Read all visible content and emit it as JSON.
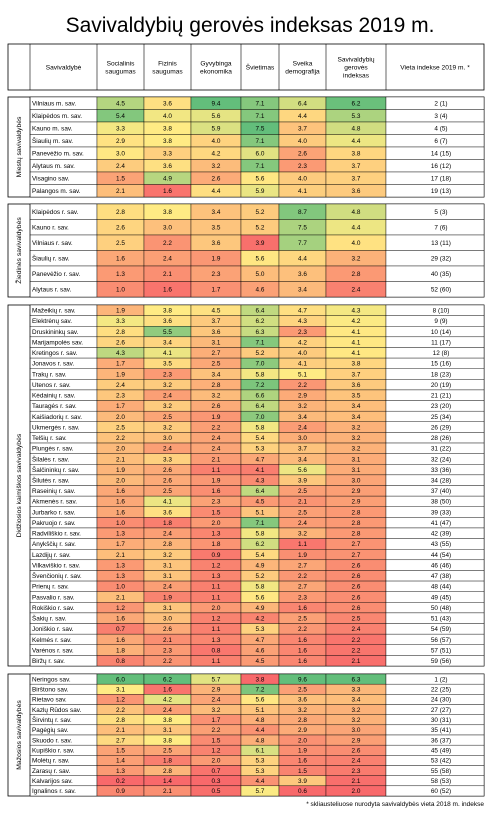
{
  "chart_data": {
    "type": "table",
    "title": "Savivaldybių gerovės indeksas 2019 m.",
    "footnote": "* skliausteliuose nurodyta savivaldybės vieta 2018 m. indekse",
    "columns": [
      "Savivaldybė",
      "Socialinis saugumas",
      "Fizinis saugumas",
      "Gyvybinga ekonomika",
      "Švietimas",
      "Sveika demografija",
      "Savivaldybių gerovės indeksas",
      "Vieta indekse 2019 m. *"
    ],
    "groups": [
      {
        "name": "Miestų savivaldybės",
        "rows": [
          {
            "name": "Vilniaus m. sav.",
            "values": [
              4.5,
              3.6,
              9.4,
              7.1,
              6.4,
              6.2
            ],
            "rank": "2 (1)"
          },
          {
            "name": "Klaipėdos m. sav.",
            "values": [
              5.4,
              4.0,
              5.6,
              7.1,
              4.4,
              5.3
            ],
            "rank": "3 (4)"
          },
          {
            "name": "Kauno m. sav.",
            "values": [
              3.3,
              3.8,
              5.9,
              7.5,
              3.7,
              4.8
            ],
            "rank": "4 (5)"
          },
          {
            "name": "Šiaulių m. sav.",
            "values": [
              2.9,
              3.8,
              4.0,
              7.1,
              4.0,
              4.4
            ],
            "rank": "6 (7)"
          },
          {
            "name": "Panevėžio m. sav.",
            "values": [
              3.0,
              3.3,
              4.2,
              6.0,
              2.6,
              3.8
            ],
            "rank": "14 (15)"
          },
          {
            "name": "Alytaus m. sav.",
            "values": [
              2.4,
              3.6,
              3.2,
              7.1,
              2.3,
              3.7
            ],
            "rank": "16 (12)"
          },
          {
            "name": "Visagino sav.",
            "values": [
              1.5,
              4.9,
              2.6,
              5.6,
              4.0,
              3.7
            ],
            "rank": "17 (18)"
          },
          {
            "name": "Palangos m. sav.",
            "values": [
              2.1,
              1.6,
              4.4,
              5.9,
              4.1,
              3.6
            ],
            "rank": "19 (13)"
          }
        ]
      },
      {
        "name": "Žiedinės savivaldybės",
        "rows": [
          {
            "name": "Klaipėdos r. sav.",
            "values": [
              2.8,
              3.8,
              3.4,
              5.2,
              8.7,
              4.8
            ],
            "rank": "5 (3)"
          },
          {
            "name": "Kauno r. sav.",
            "values": [
              2.6,
              3.0,
              3.5,
              5.2,
              7.5,
              4.4
            ],
            "rank": "7 (6)"
          },
          {
            "name": "Vilniaus r. sav.",
            "values": [
              2.5,
              2.2,
              3.6,
              3.9,
              7.7,
              4.0
            ],
            "rank": "13 (11)"
          },
          {
            "name": "Šiaulių r. sav.",
            "values": [
              1.6,
              2.4,
              1.9,
              5.6,
              4.4,
              3.2
            ],
            "rank": "29 (32)"
          },
          {
            "name": "Panevėžio r. sav.",
            "values": [
              1.3,
              2.1,
              2.3,
              5.0,
              3.6,
              2.8
            ],
            "rank": "40 (35)"
          },
          {
            "name": "Alytaus r. sav.",
            "values": [
              1.0,
              1.6,
              1.7,
              4.6,
              3.4,
              2.4
            ],
            "rank": "52 (60)"
          }
        ]
      },
      {
        "name": "Didžiosios kaimiškos savivaldybės",
        "rows": [
          {
            "name": "Mažeikių r. sav.",
            "values": [
              1.9,
              3.8,
              4.5,
              6.4,
              4.7,
              4.3
            ],
            "rank": "8 (10)"
          },
          {
            "name": "Elektrėnų sav.",
            "values": [
              3.3,
              3.6,
              3.7,
              6.2,
              4.3,
              4.2
            ],
            "rank": "9 (9)"
          },
          {
            "name": "Druskininkų sav.",
            "values": [
              2.8,
              5.5,
              3.6,
              6.3,
              2.3,
              4.1
            ],
            "rank": "10 (14)"
          },
          {
            "name": "Marijampolės sav.",
            "values": [
              2.6,
              3.4,
              3.1,
              7.1,
              4.2,
              4.1
            ],
            "rank": "11 (17)"
          },
          {
            "name": "Kretingos r. sav.",
            "values": [
              4.3,
              4.1,
              2.7,
              5.2,
              4.0,
              4.1
            ],
            "rank": "12 (8)"
          },
          {
            "name": "Jonavos r. sav.",
            "values": [
              1.7,
              3.5,
              2.5,
              7.0,
              4.1,
              3.8
            ],
            "rank": "15 (16)"
          },
          {
            "name": "Trakų r. sav.",
            "values": [
              1.9,
              2.3,
              3.4,
              5.8,
              5.1,
              3.7
            ],
            "rank": "18 (23)"
          },
          {
            "name": "Utenos r. sav.",
            "values": [
              2.4,
              3.2,
              2.8,
              7.2,
              2.2,
              3.6
            ],
            "rank": "20 (19)"
          },
          {
            "name": "Kėdainių r. sav.",
            "values": [
              2.3,
              2.4,
              3.2,
              6.6,
              2.9,
              3.5
            ],
            "rank": "21 (21)"
          },
          {
            "name": "Tauragės r. sav.",
            "values": [
              1.7,
              3.2,
              2.6,
              6.4,
              3.2,
              3.4
            ],
            "rank": "23 (20)"
          },
          {
            "name": "Kaišiadorių r. sav.",
            "values": [
              2.0,
              2.5,
              1.9,
              7.0,
              3.4,
              3.4
            ],
            "rank": "25 (34)"
          },
          {
            "name": "Ukmergės r. sav.",
            "values": [
              2.5,
              3.2,
              2.2,
              5.8,
              2.4,
              3.2
            ],
            "rank": "26 (29)"
          },
          {
            "name": "Telšių r. sav.",
            "values": [
              2.2,
              3.0,
              2.4,
              5.4,
              3.0,
              3.2
            ],
            "rank": "28 (26)"
          },
          {
            "name": "Plungės r. sav.",
            "values": [
              2.0,
              2.4,
              2.4,
              5.3,
              3.7,
              3.2
            ],
            "rank": "31 (22)"
          },
          {
            "name": "Šilalės r. sav.",
            "values": [
              2.1,
              3.3,
              2.1,
              4.7,
              3.4,
              3.1
            ],
            "rank": "32 (24)"
          },
          {
            "name": "Šalčininkų r. sav.",
            "values": [
              1.9,
              2.6,
              1.1,
              4.1,
              5.6,
              3.1
            ],
            "rank": "33 (36)"
          },
          {
            "name": "Šilutės r. sav.",
            "values": [
              2.0,
              2.6,
              1.9,
              4.3,
              3.9,
              3.0
            ],
            "rank": "34 (28)"
          },
          {
            "name": "Raseinių r. sav.",
            "values": [
              1.6,
              2.5,
              1.6,
              6.4,
              2.5,
              2.9
            ],
            "rank": "37 (40)"
          },
          {
            "name": "Akmenės r. sav.",
            "values": [
              1.6,
              4.1,
              2.3,
              4.5,
              2.1,
              2.9
            ],
            "rank": "38 (50)"
          },
          {
            "name": "Jurbarko r. sav.",
            "values": [
              1.6,
              3.6,
              1.5,
              5.1,
              2.5,
              2.8
            ],
            "rank": "39 (33)"
          },
          {
            "name": "Pakruojo r. sav.",
            "values": [
              1.0,
              1.8,
              2.0,
              7.1,
              2.4,
              2.8
            ],
            "rank": "41 (47)"
          },
          {
            "name": "Radviliškio r. sav.",
            "values": [
              1.3,
              2.4,
              1.3,
              5.8,
              3.2,
              2.8
            ],
            "rank": "42 (39)"
          },
          {
            "name": "Anykščių r. sav.",
            "values": [
              1.7,
              2.8,
              1.8,
              6.2,
              1.1,
              2.7
            ],
            "rank": "43 (55)"
          },
          {
            "name": "Lazdijų r. sav.",
            "values": [
              2.1,
              3.2,
              0.9,
              5.4,
              1.9,
              2.7
            ],
            "rank": "44 (54)"
          },
          {
            "name": "Vilkaviškio r. sav.",
            "values": [
              1.3,
              3.1,
              1.2,
              4.9,
              2.7,
              2.6
            ],
            "rank": "46 (46)"
          },
          {
            "name": "Švenčionių r. sav.",
            "values": [
              1.3,
              3.1,
              1.3,
              5.2,
              2.2,
              2.6
            ],
            "rank": "47 (38)"
          },
          {
            "name": "Prienų r. sav.",
            "values": [
              1.0,
              2.4,
              1.1,
              5.8,
              2.7,
              2.6
            ],
            "rank": "48 (44)"
          },
          {
            "name": "Pasvalio r. sav.",
            "values": [
              2.1,
              1.9,
              1.1,
              5.6,
              2.3,
              2.6
            ],
            "rank": "49 (45)"
          },
          {
            "name": "Rokiškio r. sav.",
            "values": [
              1.2,
              3.1,
              2.0,
              4.9,
              1.6,
              2.6
            ],
            "rank": "50 (48)"
          },
          {
            "name": "Šakių r. sav.",
            "values": [
              1.6,
              3.0,
              1.2,
              4.2,
              2.5,
              2.5
            ],
            "rank": "51 (43)"
          },
          {
            "name": "Joniškio r. sav.",
            "values": [
              0.7,
              2.6,
              1.1,
              5.3,
              2.2,
              2.4
            ],
            "rank": "54 (59)"
          },
          {
            "name": "Kelmės r. sav.",
            "values": [
              1.6,
              2.1,
              1.3,
              4.7,
              1.6,
              2.2
            ],
            "rank": "56 (57)"
          },
          {
            "name": "Varėnos r. sav.",
            "values": [
              1.8,
              2.3,
              0.8,
              4.6,
              1.6,
              2.2
            ],
            "rank": "57 (51)"
          },
          {
            "name": "Biržų r. sav.",
            "values": [
              0.8,
              2.2,
              1.1,
              4.5,
              1.6,
              2.1
            ],
            "rank": "59 (56)"
          }
        ]
      },
      {
        "name": "Mažosios savivaldybės",
        "rows": [
          {
            "name": "Neringos sav.",
            "values": [
              6.0,
              6.2,
              5.7,
              3.8,
              9.6,
              6.3
            ],
            "rank": "1 (2)"
          },
          {
            "name": "Birštono sav.",
            "values": [
              3.1,
              1.6,
              2.9,
              7.2,
              2.5,
              3.3
            ],
            "rank": "22 (25)"
          },
          {
            "name": "Rietavo sav.",
            "values": [
              1.2,
              4.2,
              2.4,
              5.6,
              3.6,
              3.4
            ],
            "rank": "24 (30)"
          },
          {
            "name": "Kazlų Rūdos sav.",
            "values": [
              2.2,
              2.4,
              3.2,
              5.1,
              3.2,
              3.2
            ],
            "rank": "27 (27)"
          },
          {
            "name": "Širvintų r. sav.",
            "values": [
              2.8,
              3.8,
              1.7,
              4.8,
              2.8,
              3.2
            ],
            "rank": "30 (31)"
          },
          {
            "name": "Pagėgių sav.",
            "values": [
              2.1,
              3.1,
              2.2,
              4.4,
              2.9,
              3.0
            ],
            "rank": "35 (41)"
          },
          {
            "name": "Skuodo r. sav.",
            "values": [
              2.7,
              3.8,
              1.5,
              4.8,
              2.0,
              2.9
            ],
            "rank": "36 (37)"
          },
          {
            "name": "Kupiškio r. sav.",
            "values": [
              1.5,
              2.5,
              1.2,
              6.1,
              1.9,
              2.6
            ],
            "rank": "45 (49)"
          },
          {
            "name": "Molėtų r. sav.",
            "values": [
              1.4,
              1.8,
              2.0,
              5.3,
              1.6,
              2.4
            ],
            "rank": "53 (42)"
          },
          {
            "name": "Zarasų r. sav.",
            "values": [
              1.3,
              2.8,
              0.7,
              5.3,
              1.5,
              2.3
            ],
            "rank": "55 (58)"
          },
          {
            "name": "Kalvarijos sav.",
            "values": [
              0.2,
              1.4,
              0.3,
              4.4,
              3.9,
              2.1
            ],
            "rank": "58 (53)"
          },
          {
            "name": "Ignalinos r. sav.",
            "values": [
              0.9,
              2.1,
              0.5,
              5.7,
              0.6,
              2.0
            ],
            "rank": "60 (52)"
          }
        ]
      }
    ],
    "color_scale": {
      "low": "#f8696b",
      "mid": "#ffeb84",
      "high": "#63be7b"
    }
  }
}
